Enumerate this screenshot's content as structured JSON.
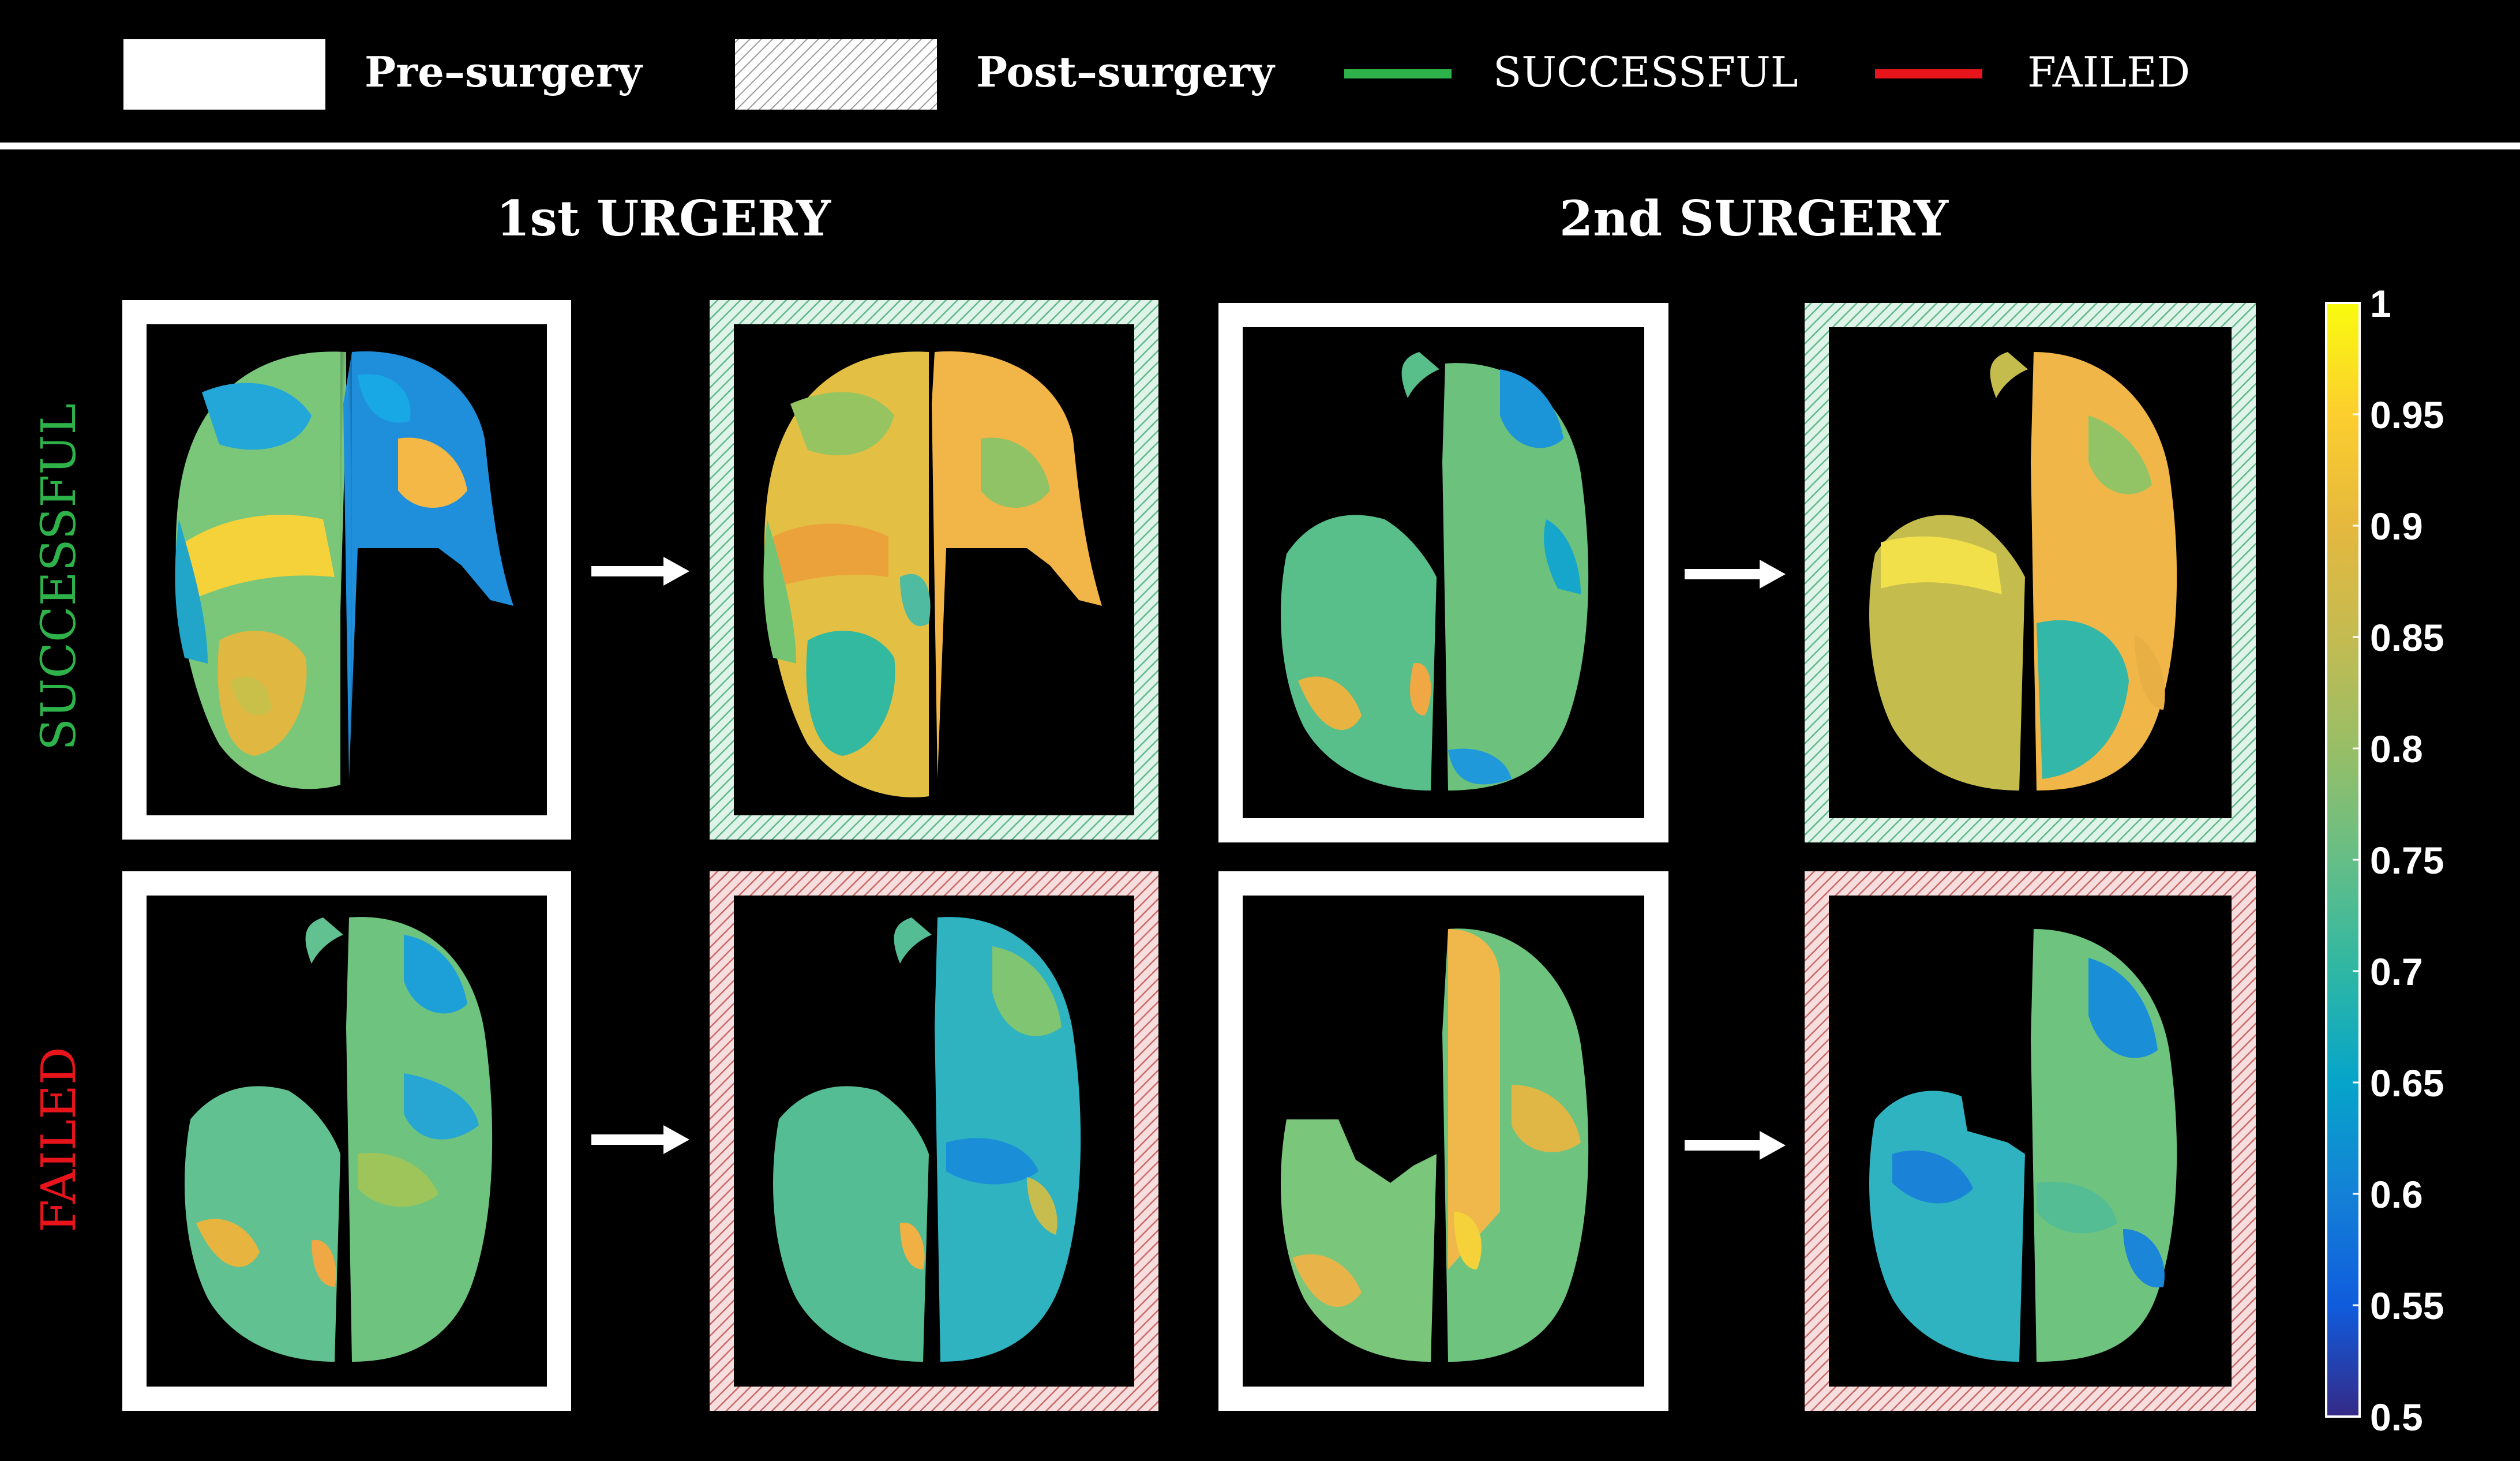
{
  "legend": {
    "pre": "Pre–surgery",
    "post": "Post–surgery",
    "successful": "SUCCESSFUL",
    "failed": "FAILED"
  },
  "headers": {
    "first": "1st URGERY",
    "second": "2nd SURGERY"
  },
  "rows": {
    "successful": "SUCCESSFUL",
    "failed": "FAILED"
  },
  "colorbar": {
    "ticks": [
      "1",
      "0.95",
      "0.9",
      "0.85",
      "0.8",
      "0.75",
      "0.7",
      "0.65",
      "0.6",
      "0.55",
      "0.5"
    ],
    "min": 0.5,
    "max": 1,
    "colormap": "parula"
  },
  "colors": {
    "successful": "#2eb34a",
    "failed": "#e8141b",
    "frame_pre": "#ffffff",
    "success_frame": "#9fd9b9",
    "failed_frame": "#e8a5a5"
  }
}
